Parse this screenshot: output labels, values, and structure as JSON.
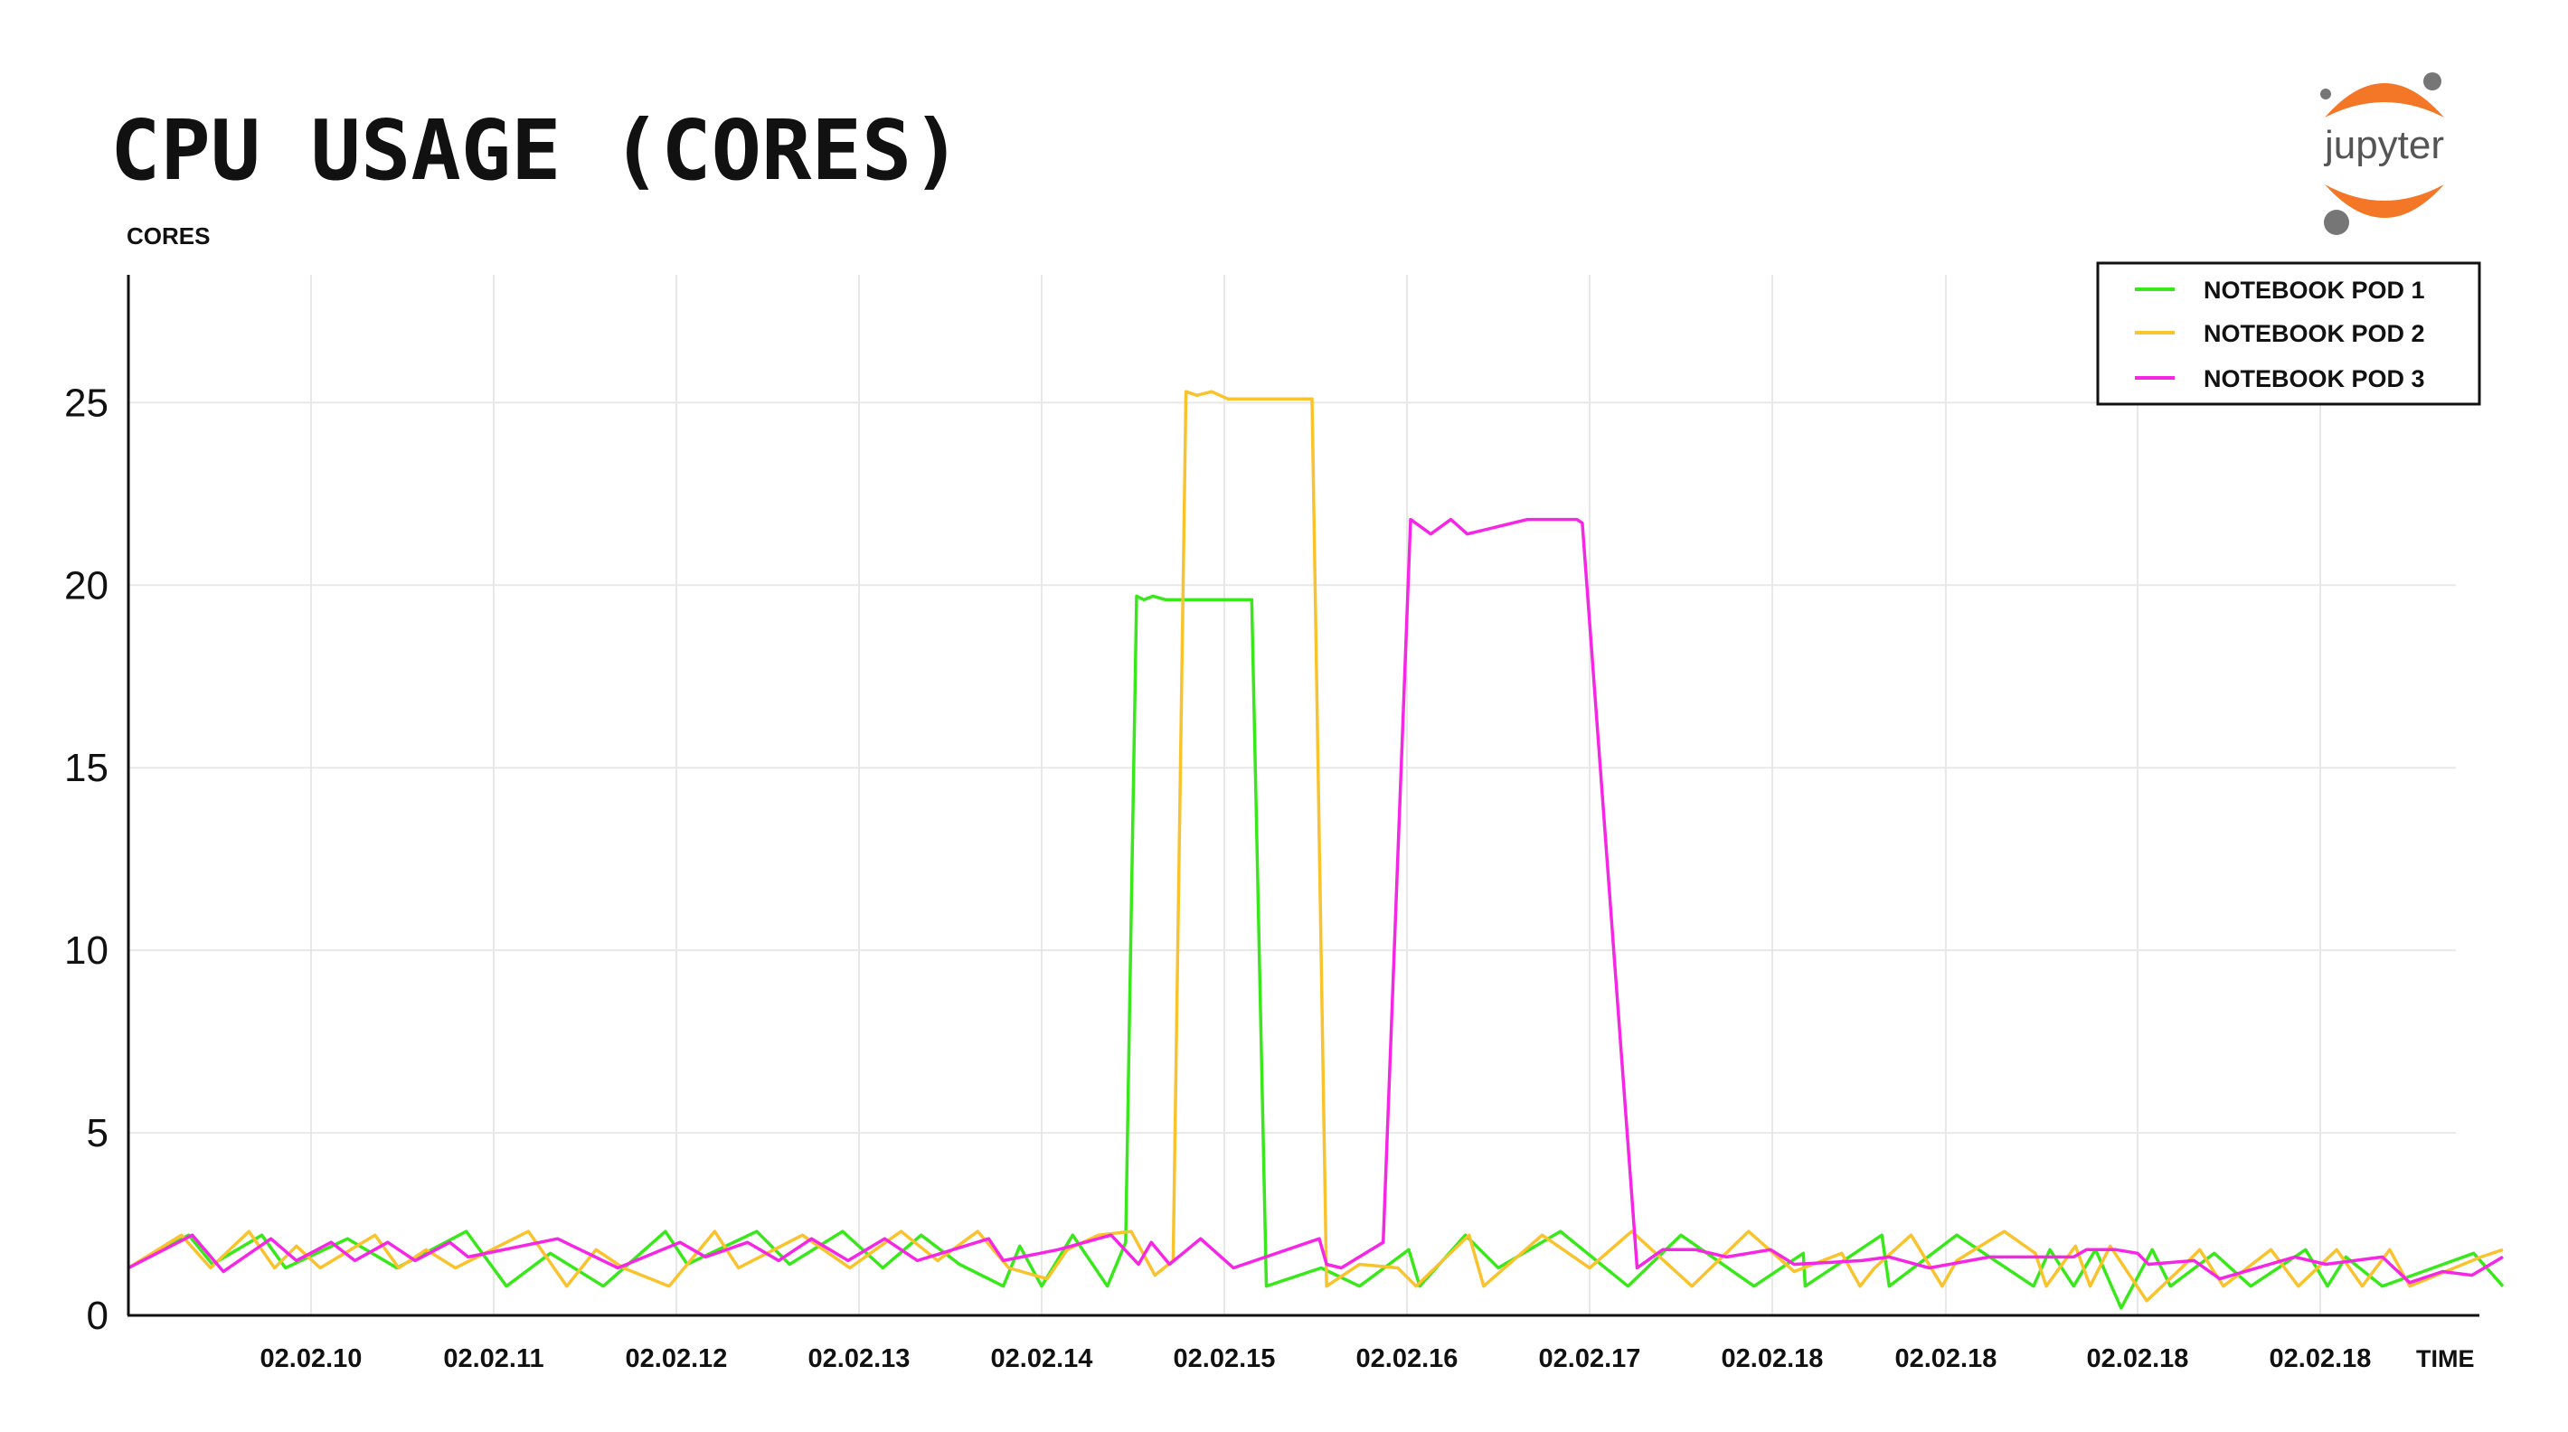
{
  "chart_data": {
    "type": "line",
    "title": "CPU USAGE (CORES)",
    "ylabel": "CORES",
    "xlabel": "TIME",
    "ylim": [
      0,
      28.5
    ],
    "yticks": [
      0,
      5,
      10,
      15,
      20,
      25
    ],
    "xlim": [
      0,
      130
    ],
    "x_tick_positions": [
      10,
      20,
      30,
      40,
      50,
      60,
      70,
      80,
      90,
      99.5,
      110,
      120
    ],
    "x_tick_labels": [
      "02.02.10",
      "02.02.11",
      "02.02.12",
      "02.02.13",
      "02.02.14",
      "02.02.15",
      "02.02.16",
      "02.02.17",
      "02.02.18",
      "02.02.18",
      "02.02.18",
      "02.02.18"
    ],
    "grid": true,
    "legend_position": "top-right",
    "series": [
      {
        "name": "NOTEBOOK POD 1",
        "color": "#39e81a",
        "points": [
          [
            0,
            1.3
          ],
          [
            3.3,
            2.2
          ],
          [
            4.6,
            1.4
          ],
          [
            7.3,
            2.2
          ],
          [
            8.6,
            1.3
          ],
          [
            12,
            2.1
          ],
          [
            14.7,
            1.3
          ],
          [
            18.5,
            2.3
          ],
          [
            20.7,
            0.8
          ],
          [
            23.1,
            1.7
          ],
          [
            26,
            0.8
          ],
          [
            29.4,
            2.3
          ],
          [
            30.6,
            1.4
          ],
          [
            34.4,
            2.3
          ],
          [
            36.2,
            1.4
          ],
          [
            39.1,
            2.3
          ],
          [
            41.3,
            1.3
          ],
          [
            43.4,
            2.2
          ],
          [
            45.5,
            1.4
          ],
          [
            47.9,
            0.8
          ],
          [
            48.8,
            1.9
          ],
          [
            50,
            0.8
          ],
          [
            51.7,
            2.2
          ],
          [
            53.6,
            0.8
          ],
          [
            54.6,
            2.0
          ],
          [
            55.2,
            19.7
          ],
          [
            55.6,
            19.6
          ],
          [
            56.1,
            19.7
          ],
          [
            56.8,
            19.6
          ],
          [
            61.5,
            19.6
          ],
          [
            62.3,
            0.8
          ],
          [
            65.3,
            1.3
          ],
          [
            67.4,
            0.8
          ],
          [
            70.1,
            1.8
          ],
          [
            70.7,
            0.8
          ],
          [
            73.2,
            2.2
          ],
          [
            75,
            1.3
          ],
          [
            78.4,
            2.3
          ],
          [
            82.1,
            0.8
          ],
          [
            85,
            2.2
          ],
          [
            89,
            0.8
          ],
          [
            91.7,
            1.7
          ],
          [
            91.8,
            0.8
          ],
          [
            96,
            2.2
          ],
          [
            96.4,
            0.8
          ],
          [
            100.1,
            2.2
          ],
          [
            104.3,
            0.8
          ],
          [
            105.2,
            1.8
          ],
          [
            106.5,
            0.8
          ],
          [
            107.7,
            1.8
          ],
          [
            109.1,
            0.2
          ],
          [
            110.8,
            1.8
          ],
          [
            111.8,
            0.8
          ],
          [
            114.2,
            1.7
          ],
          [
            116.2,
            0.8
          ],
          [
            119.2,
            1.8
          ],
          [
            120.4,
            0.8
          ],
          [
            121.4,
            1.6
          ],
          [
            123.4,
            0.8
          ],
          [
            128.4,
            1.7
          ],
          [
            130,
            0.8
          ]
        ]
      },
      {
        "name": "NOTEBOOK POD 2",
        "color": "#f9c32e",
        "points": [
          [
            0,
            1.3
          ],
          [
            2.9,
            2.2
          ],
          [
            4.5,
            1.3
          ],
          [
            6.6,
            2.3
          ],
          [
            8,
            1.3
          ],
          [
            9.2,
            1.9
          ],
          [
            10.5,
            1.3
          ],
          [
            13.5,
            2.2
          ],
          [
            14.8,
            1.3
          ],
          [
            16.3,
            1.8
          ],
          [
            17.9,
            1.3
          ],
          [
            21.9,
            2.3
          ],
          [
            24,
            0.8
          ],
          [
            25.6,
            1.8
          ],
          [
            27.1,
            1.3
          ],
          [
            29.6,
            0.8
          ],
          [
            32.1,
            2.3
          ],
          [
            33.4,
            1.3
          ],
          [
            36.9,
            2.2
          ],
          [
            39.5,
            1.3
          ],
          [
            42.3,
            2.3
          ],
          [
            44.3,
            1.5
          ],
          [
            46.5,
            2.3
          ],
          [
            48.2,
            1.3
          ],
          [
            50.3,
            1.0
          ],
          [
            51.4,
            1.8
          ],
          [
            53.1,
            2.2
          ],
          [
            54.9,
            2.3
          ],
          [
            56.2,
            1.1
          ],
          [
            57.2,
            1.5
          ],
          [
            57.9,
            25.3
          ],
          [
            58.5,
            25.2
          ],
          [
            59.3,
            25.3
          ],
          [
            60.2,
            25.1
          ],
          [
            64.8,
            25.1
          ],
          [
            65.6,
            0.8
          ],
          [
            67.4,
            1.4
          ],
          [
            69.5,
            1.3
          ],
          [
            70.5,
            0.8
          ],
          [
            73.4,
            2.2
          ],
          [
            74.2,
            0.8
          ],
          [
            77.4,
            2.2
          ],
          [
            80,
            1.3
          ],
          [
            82.3,
            2.3
          ],
          [
            85.6,
            0.8
          ],
          [
            88.7,
            2.3
          ],
          [
            91.2,
            1.2
          ],
          [
            93.8,
            1.7
          ],
          [
            94.8,
            0.8
          ],
          [
            95.6,
            1.3
          ],
          [
            97.6,
            2.2
          ],
          [
            99.3,
            0.8
          ],
          [
            100.1,
            1.5
          ],
          [
            102.7,
            2.3
          ],
          [
            104.4,
            1.7
          ],
          [
            105,
            0.8
          ],
          [
            106.6,
            1.9
          ],
          [
            107.4,
            0.8
          ],
          [
            108.5,
            1.9
          ],
          [
            110.5,
            0.4
          ],
          [
            112.4,
            1.3
          ],
          [
            113.4,
            1.8
          ],
          [
            114.7,
            0.8
          ],
          [
            117.3,
            1.8
          ],
          [
            118.8,
            0.8
          ],
          [
            120.9,
            1.8
          ],
          [
            122.3,
            0.8
          ],
          [
            123.8,
            1.8
          ],
          [
            124.9,
            0.8
          ],
          [
            128.8,
            1.6
          ],
          [
            130,
            1.8
          ]
        ]
      },
      {
        "name": "NOTEBOOK POD 3",
        "color": "#f526e4",
        "points": [
          [
            0,
            1.3
          ],
          [
            3.5,
            2.2
          ],
          [
            5.2,
            1.2
          ],
          [
            7.8,
            2.1
          ],
          [
            9.2,
            1.5
          ],
          [
            11.1,
            2.0
          ],
          [
            12.4,
            1.5
          ],
          [
            14.2,
            2.0
          ],
          [
            15.7,
            1.5
          ],
          [
            17.6,
            2.0
          ],
          [
            18.6,
            1.6
          ],
          [
            23.5,
            2.1
          ],
          [
            26.8,
            1.3
          ],
          [
            30.2,
            2.0
          ],
          [
            31.6,
            1.6
          ],
          [
            33.9,
            2.0
          ],
          [
            35.6,
            1.5
          ],
          [
            37.4,
            2.1
          ],
          [
            39.4,
            1.5
          ],
          [
            41.4,
            2.1
          ],
          [
            43.2,
            1.5
          ],
          [
            47.1,
            2.1
          ],
          [
            47.9,
            1.5
          ],
          [
            50.9,
            1.8
          ],
          [
            53.8,
            2.2
          ],
          [
            55.3,
            1.4
          ],
          [
            56,
            2.0
          ],
          [
            57,
            1.4
          ],
          [
            58.7,
            2.1
          ],
          [
            60.5,
            1.3
          ],
          [
            65.2,
            2.1
          ],
          [
            65.6,
            1.4
          ],
          [
            66.4,
            1.3
          ],
          [
            68.7,
            2.0
          ],
          [
            70.2,
            21.8
          ],
          [
            71.3,
            21.4
          ],
          [
            72.4,
            21.8
          ],
          [
            73.3,
            21.4
          ],
          [
            76.6,
            21.8
          ],
          [
            79.3,
            21.8
          ],
          [
            79.6,
            21.7
          ],
          [
            82.6,
            1.3
          ],
          [
            84,
            1.8
          ],
          [
            85.8,
            1.8
          ],
          [
            87.5,
            1.6
          ],
          [
            89.9,
            1.8
          ],
          [
            91.2,
            1.4
          ],
          [
            94.9,
            1.5
          ],
          [
            96.4,
            1.6
          ],
          [
            98.6,
            1.3
          ],
          [
            101.9,
            1.6
          ],
          [
            106.5,
            1.6
          ],
          [
            107.2,
            1.8
          ],
          [
            108.8,
            1.8
          ],
          [
            110,
            1.7
          ],
          [
            110.6,
            1.4
          ],
          [
            113.1,
            1.5
          ],
          [
            114.5,
            1.0
          ],
          [
            118.6,
            1.6
          ],
          [
            120.3,
            1.4
          ],
          [
            123.4,
            1.6
          ],
          [
            124.9,
            0.9
          ],
          [
            126.7,
            1.2
          ],
          [
            128.3,
            1.1
          ],
          [
            130,
            1.6
          ]
        ]
      }
    ]
  },
  "logo": {
    "text": "jupyter",
    "orange": "#f37726",
    "grey": "#767677"
  }
}
